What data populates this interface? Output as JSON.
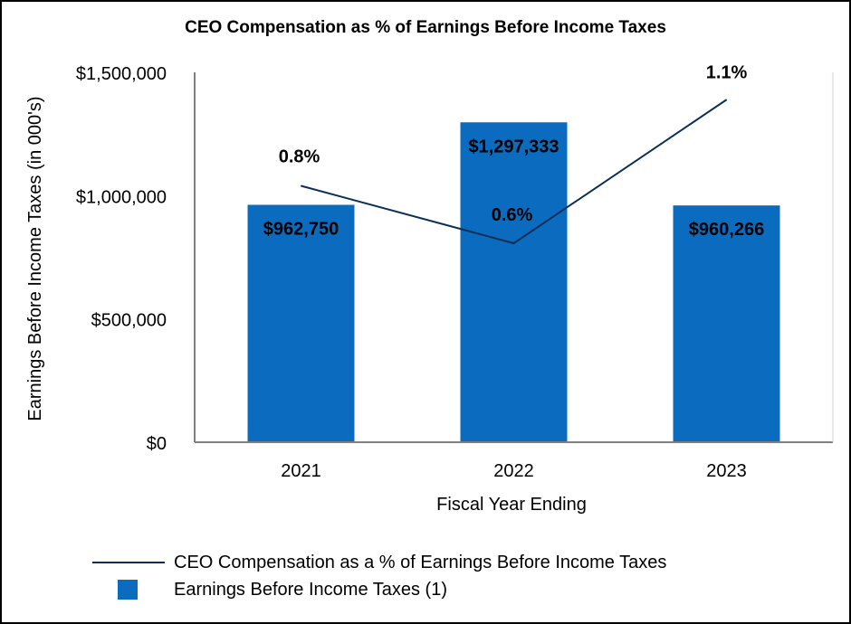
{
  "chart_data": {
    "type": "bar",
    "title": "CEO Compensation as % of Earnings Before Income Taxes",
    "xlabel": "Fiscal Year Ending",
    "ylabel": "Earnings Before Income Taxes (in 000's)",
    "categories": [
      "2021",
      "2022",
      "2023"
    ],
    "ylim": [
      0,
      1500000
    ],
    "yticks": [
      0,
      500000,
      1000000,
      1500000
    ],
    "ytick_labels": [
      "$0",
      "$500,000",
      "$1,000,000",
      "$1,500,000"
    ],
    "series": [
      {
        "name": "Earnings Before Income Taxes (1)",
        "type": "bar",
        "values": [
          962750,
          1297333,
          960266
        ],
        "labels": [
          "$962,750",
          "$1,297,333",
          "$960,266"
        ],
        "color": "#0b6cbf"
      },
      {
        "name": "CEO Compensation as a % of Earnings Before Income Taxes",
        "type": "line",
        "values": [
          0.8,
          0.6,
          1.1
        ],
        "labels": [
          "0.8%",
          "0.6%",
          "1.1%"
        ],
        "color": "#0b2f57"
      }
    ],
    "legend_position": "bottom"
  }
}
